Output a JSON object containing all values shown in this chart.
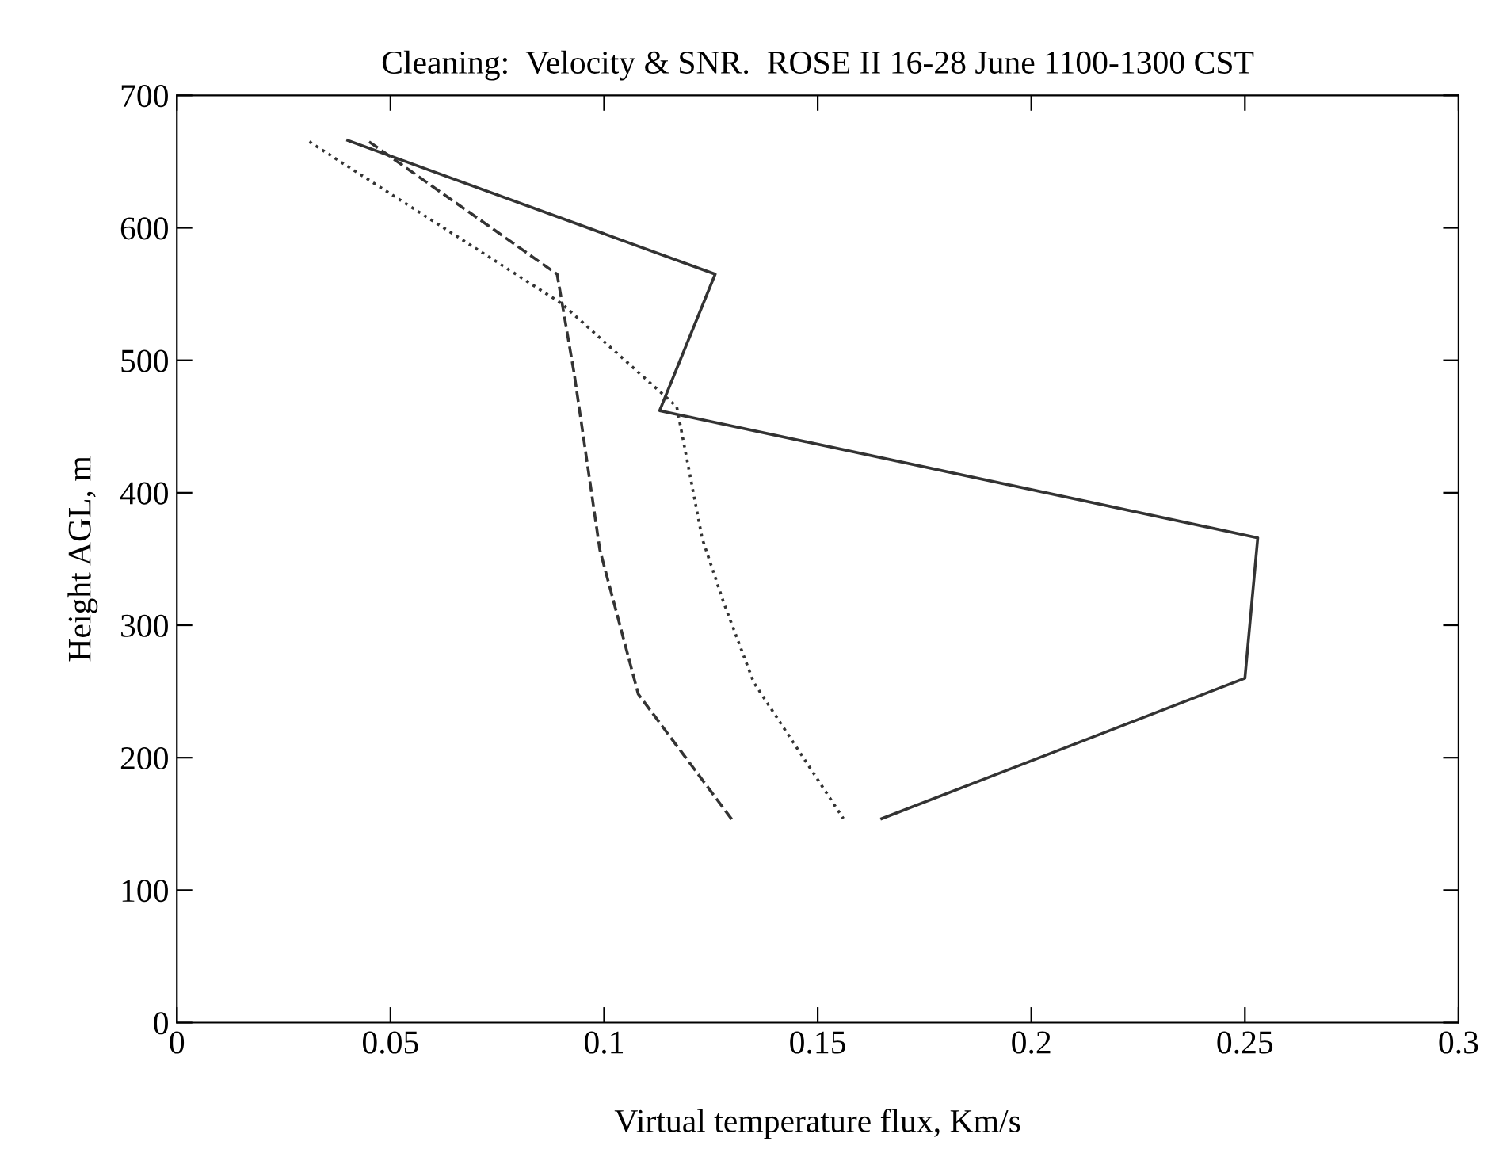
{
  "chart_data": {
    "type": "line",
    "title": "Cleaning:  Velocity & SNR.  ROSE II 16-28 June 1100-1300 CST",
    "xlabel": "Virtual temperature flux, Km/s",
    "ylabel": "Height AGL, m",
    "xlim": [
      0,
      0.3
    ],
    "xticks": [
      0,
      0.05,
      0.1,
      0.15,
      0.2,
      0.25,
      0.3
    ],
    "ylim": [
      0,
      700
    ],
    "yticks": [
      0,
      100,
      200,
      300,
      400,
      500,
      600,
      700
    ],
    "grid": false,
    "marker": "none",
    "series": [
      {
        "color": "#333333",
        "line_style": "solid",
        "x": [
          0.04,
          0.126,
          0.113,
          0.253,
          0.25,
          0.165
        ],
        "values": [
          666,
          565,
          462,
          366,
          260,
          154
        ]
      },
      {
        "color": "#333333",
        "line_style": "dashed",
        "x": [
          0.045,
          0.089,
          0.093,
          0.099,
          0.108,
          0.13
        ],
        "values": [
          665,
          565,
          490,
          357,
          248,
          153
        ]
      },
      {
        "color": "#333333",
        "line_style": "dotted",
        "x": [
          0.031,
          0.09,
          0.117,
          0.123,
          0.128,
          0.135,
          0.156
        ],
        "values": [
          665,
          543,
          465,
          365,
          317,
          257,
          154
        ]
      }
    ]
  }
}
